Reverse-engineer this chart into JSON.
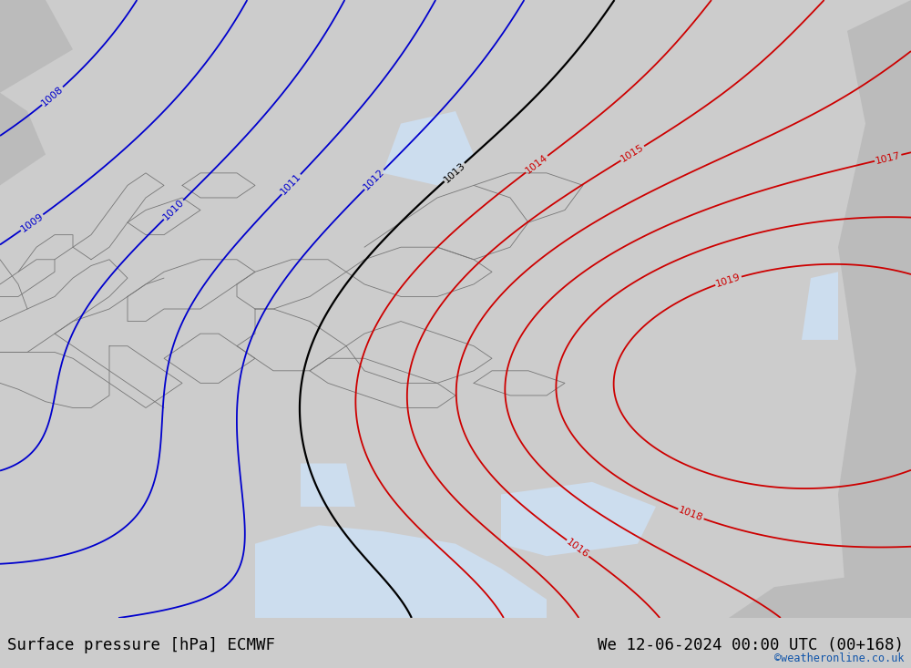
{
  "title_left": "Surface pressure [hPa] ECMWF",
  "title_right": "We 12-06-2024 00:00 UTC (00+168)",
  "credit": "©weatheronline.co.uk",
  "land_color": "#aaddaa",
  "sea_color": "#ccddee",
  "gray_area_color": "#bbbbbb",
  "bottom_bar_color": "#dddddd",
  "fig_bg_color": "#cccccc",
  "figsize": [
    10.0,
    7.33
  ],
  "dpi": 100,
  "levels_blue": [
    1008,
    1009,
    1010,
    1011,
    1012
  ],
  "levels_black": [
    1013
  ],
  "levels_red": [
    1014,
    1015,
    1016,
    1017,
    1018,
    1019
  ],
  "color_blue": "#0000cc",
  "color_black": "#000000",
  "color_red": "#cc0000",
  "lw_blue": 1.3,
  "lw_black": 1.6,
  "lw_red": 1.3,
  "label_fontsize": 8,
  "title_fontsize": 12.5,
  "credit_fontsize": 8.5,
  "title_color": "#000000",
  "credit_color": "#1155aa"
}
